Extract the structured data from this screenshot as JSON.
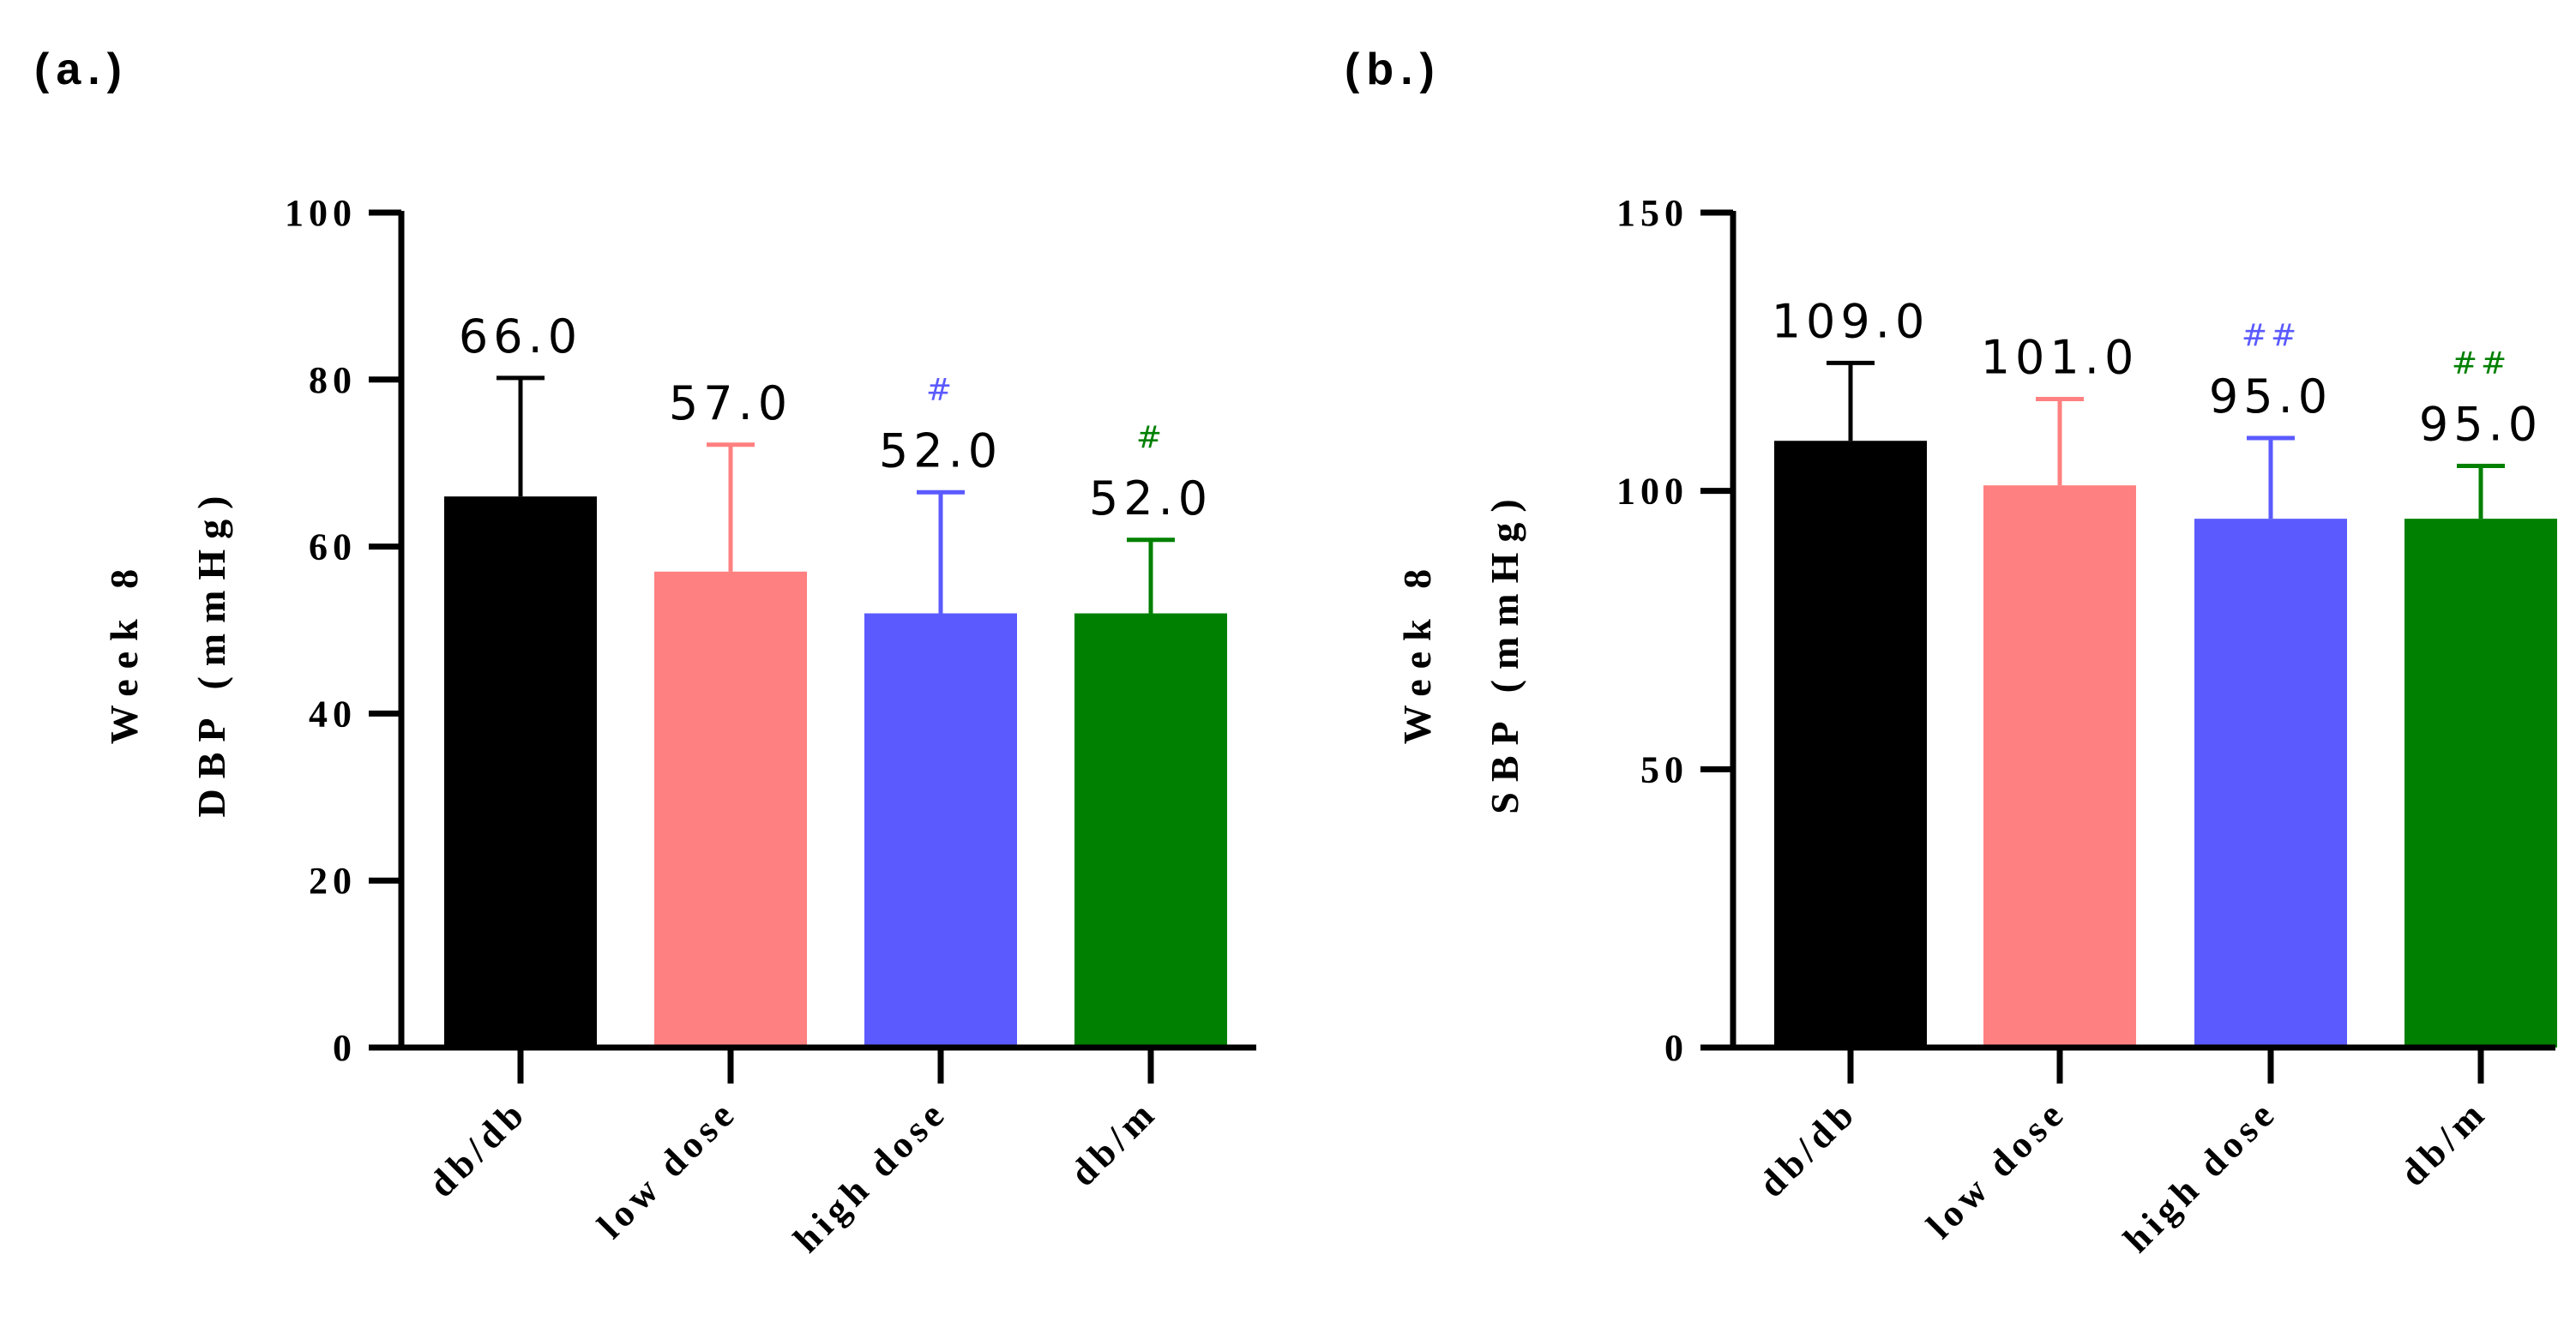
{
  "chart_data": [
    {
      "panel_label": "(a.)",
      "type": "bar",
      "categories": [
        "db/db",
        "low dose",
        "high dose",
        "db/m"
      ],
      "values": [
        66.0,
        57.0,
        52.0,
        52.0
      ],
      "error_upper": [
        80.2,
        72.2,
        66.5,
        60.8
      ],
      "value_labels": [
        "66.0",
        "57.0",
        "52.0",
        "52.0"
      ],
      "significance": [
        "",
        "",
        "#",
        "#"
      ],
      "colors": [
        "#000000",
        "#ff8080",
        "#5a5aff",
        "#008000"
      ],
      "ylabel_line1": "Week 8",
      "ylabel_line2": "DBP (mmHg)",
      "ylim": [
        0,
        100
      ],
      "yticks": [
        0,
        20,
        40,
        60,
        80,
        100
      ],
      "ytick_labels": [
        "0",
        "20",
        "40",
        "60",
        "80",
        "100"
      ]
    },
    {
      "panel_label": "(b.)",
      "type": "bar",
      "categories": [
        "db/db",
        "low dose",
        "high dose",
        "db/m"
      ],
      "values": [
        109.0,
        101.0,
        95.0,
        95.0
      ],
      "error_upper": [
        123.0,
        116.5,
        109.5,
        104.5
      ],
      "value_labels": [
        "109.0",
        "101.0",
        "95.0",
        "95.0"
      ],
      "significance": [
        "",
        "",
        "##",
        "##"
      ],
      "colors": [
        "#000000",
        "#ff8080",
        "#5a5aff",
        "#008000"
      ],
      "ylabel_line1": "Week 8",
      "ylabel_line2": "SBP (mmHg)",
      "ylim": [
        0,
        150
      ],
      "yticks": [
        0,
        50,
        100,
        150
      ],
      "ytick_labels": [
        "0",
        "50",
        "100",
        "150"
      ]
    }
  ]
}
